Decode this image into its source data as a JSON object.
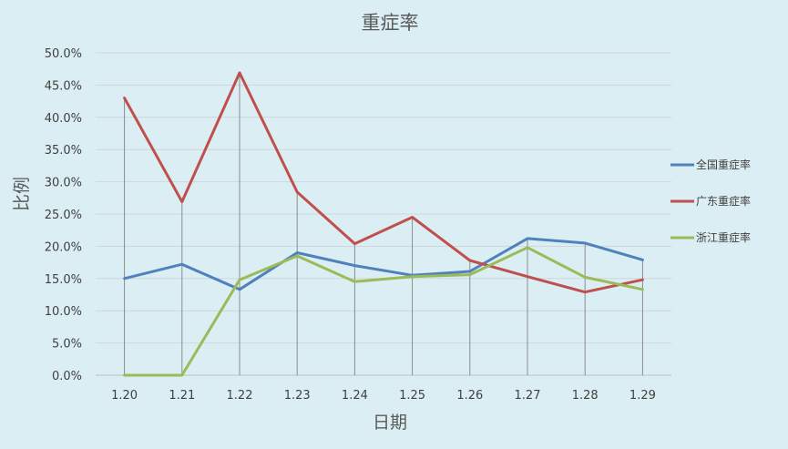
{
  "chart_data": {
    "type": "line",
    "title": "重症率",
    "xlabel": "日期",
    "ylabel": "比例",
    "categories": [
      "1.20",
      "1.21",
      "1.22",
      "1.23",
      "1.24",
      "1.25",
      "1.26",
      "1.27",
      "1.28",
      "1.29"
    ],
    "y_ticks": [
      "0.0%",
      "5.0%",
      "10.0%",
      "15.0%",
      "20.0%",
      "25.0%",
      "30.0%",
      "35.0%",
      "40.0%",
      "45.0%",
      "50.0%"
    ],
    "ylim": [
      0,
      50
    ],
    "grid": true,
    "drop_lines": true,
    "legend_position": "right",
    "series": [
      {
        "name": "全国重症率",
        "color": "#4f81bd",
        "values": [
          15.0,
          17.2,
          13.3,
          19.0,
          17.0,
          15.5,
          16.1,
          21.2,
          20.5,
          17.9
        ]
      },
      {
        "name": "广东重症率",
        "color": "#c0504d",
        "values": [
          43.0,
          26.9,
          46.9,
          28.4,
          20.4,
          24.5,
          17.8,
          15.3,
          12.9,
          14.8
        ]
      },
      {
        "name": "浙江重症率",
        "color": "#9bbb59",
        "values": [
          0.0,
          0.0,
          14.8,
          18.5,
          14.5,
          15.3,
          15.6,
          19.8,
          15.2,
          13.3
        ]
      }
    ]
  }
}
